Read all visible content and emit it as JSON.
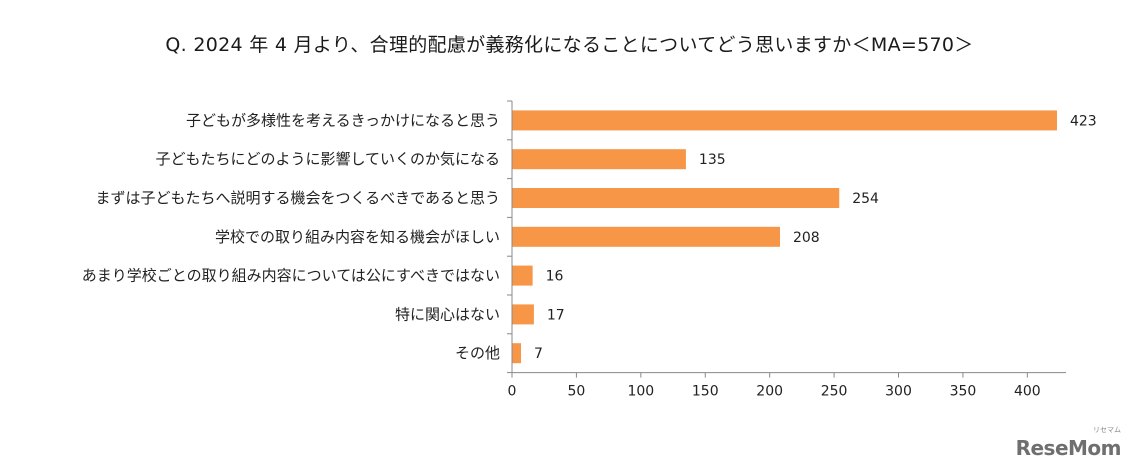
{
  "chart_data": {
    "type": "bar",
    "orientation": "horizontal",
    "title": "Q. 2024 年 4 月より、合理的配慮が義務化になることについてどう思いますか＜MA=570＞",
    "categories": [
      "子どもが多様性を考えるきっかけになると思う",
      "子どもたちにどのように影響していくのか気になる",
      "まずは子どもたちへ説明する機会をつくるべきであると思う",
      "学校での取り組み内容を知る機会がほしい",
      "あまり学校ごとの取り組み内容については公にすべきではない",
      "特に関心はない",
      "その他"
    ],
    "values": [
      423,
      135,
      254,
      208,
      16,
      17,
      7
    ],
    "xlim": [
      0,
      430
    ],
    "xticks": [
      0,
      50,
      100,
      150,
      200,
      250,
      300,
      350,
      400
    ],
    "xlabel": "",
    "ylabel": "",
    "grid": false,
    "legend": "none",
    "bar_color": "#F79646"
  },
  "watermark": {
    "logo": "ReseMom",
    "sub": "リセマム"
  }
}
